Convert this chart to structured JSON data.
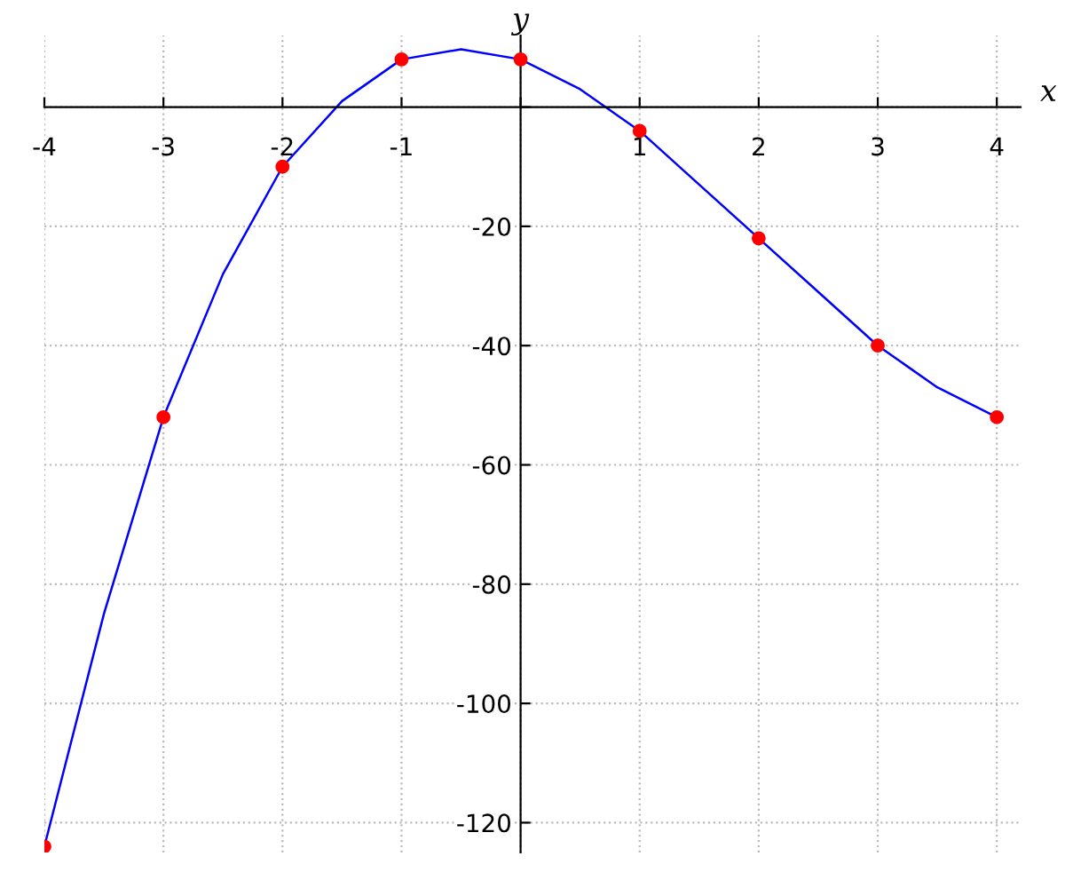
{
  "chart_data": {
    "type": "line",
    "xlabel": "x",
    "ylabel": "y",
    "series": [
      {
        "color": "#0000ff",
        "x": [
          -4,
          -3.5,
          -3,
          -2.5,
          -2,
          -1.5,
          -1,
          -0.5,
          0,
          0.5,
          1,
          1.5,
          2,
          2.5,
          3,
          3.5,
          4
        ],
        "values": [
          -124,
          -85,
          -52,
          -28,
          -10,
          1,
          8,
          9.7,
          8,
          3,
          -4,
          -13,
          -22,
          -31,
          -40,
          -47,
          -52
        ],
        "line_style": "solid",
        "marker": "none"
      },
      {
        "type": "scatter",
        "color": "#ff0000",
        "x": [
          -4,
          -3,
          -2,
          -1,
          0,
          1,
          2,
          3,
          4
        ],
        "values": [
          -124,
          -52,
          -10,
          8,
          8,
          -4,
          -22,
          -40,
          -52
        ],
        "marker": "circle"
      }
    ],
    "xlim": [
      -4,
      4.2
    ],
    "ylim": [
      -125,
      12
    ],
    "xticks": [
      -4,
      -3,
      -2,
      -1,
      {
        "value": 0,
        "label": null
      },
      1,
      2,
      3,
      4
    ],
    "yticks": [
      -120,
      -100,
      -80,
      -60,
      -40,
      -20,
      {
        "value": 0,
        "label": null
      }
    ],
    "grid": true,
    "legend": false
  }
}
